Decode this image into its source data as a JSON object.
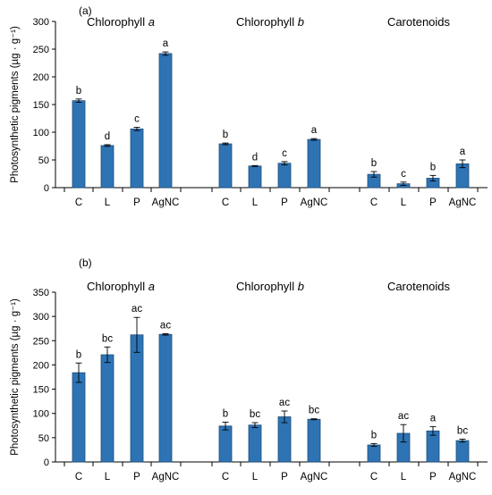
{
  "chart_data": [
    {
      "type": "bar",
      "panel_label": "(a)",
      "ylabel": "Photosynthetic pigments (µg · g⁻¹)",
      "ylim": [
        0,
        300
      ],
      "yticks": [
        0,
        50,
        100,
        150,
        200,
        250,
        300
      ],
      "categories": [
        "C",
        "L",
        "P",
        "AgNC"
      ],
      "groups": [
        {
          "name": "Chlorophyll ",
          "name_italic": "a",
          "values": [
            157,
            76,
            106,
            242
          ],
          "errors": [
            3,
            1.5,
            3,
            3
          ],
          "letters": [
            "b",
            "d",
            "c",
            "a"
          ]
        },
        {
          "name": "Chlorophyll ",
          "name_italic": "b",
          "values": [
            79,
            39,
            44,
            87
          ],
          "errors": [
            1.5,
            0.8,
            3,
            1.5
          ],
          "letters": [
            "b",
            "d",
            "c",
            "a"
          ]
        },
        {
          "name": "Carotenoids",
          "name_italic": "",
          "values": [
            24,
            7,
            17,
            43
          ],
          "errors": [
            5,
            3,
            5,
            7
          ],
          "letters": [
            "b",
            "c",
            "b",
            "a"
          ]
        }
      ]
    },
    {
      "type": "bar",
      "panel_label": "(b)",
      "ylabel": "Photosynthetic pigments (µg · g⁻¹)",
      "ylim": [
        0,
        350
      ],
      "yticks": [
        0,
        50,
        100,
        150,
        200,
        250,
        300,
        350
      ],
      "categories": [
        "C",
        "L",
        "P",
        "AgNC"
      ],
      "groups": [
        {
          "name": "Chlorophyll ",
          "name_italic": "a",
          "values": [
            184,
            221,
            262,
            263
          ],
          "errors": [
            20,
            16,
            36,
            1.5
          ],
          "letters": [
            "b",
            "bc",
            "ac",
            "ac"
          ]
        },
        {
          "name": "Chlorophyll ",
          "name_italic": "b",
          "values": [
            74,
            76,
            93,
            88
          ],
          "errors": [
            8,
            5,
            12,
            1
          ],
          "letters": [
            "b",
            "bc",
            "ac",
            "bc"
          ]
        },
        {
          "name": "Carotenoids",
          "name_italic": "",
          "values": [
            35,
            59,
            64,
            44
          ],
          "errors": [
            3,
            18,
            9,
            3
          ],
          "letters": [
            "b",
            "ac",
            "a",
            "bc"
          ]
        }
      ]
    }
  ]
}
